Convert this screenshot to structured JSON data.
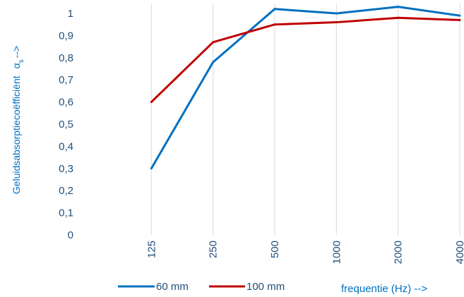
{
  "chart_data": {
    "type": "line",
    "categories": [
      "125",
      "250",
      "500",
      "1000",
      "2000",
      "4000"
    ],
    "series": [
      {
        "name": "60 mm",
        "color": "#0070c0",
        "values": [
          0.3,
          0.78,
          1.02,
          1.0,
          1.03,
          0.99
        ]
      },
      {
        "name": "100 mm",
        "color": "#c00000",
        "values": [
          0.6,
          0.87,
          0.95,
          0.96,
          0.98,
          0.97
        ]
      }
    ],
    "ylabel": "Geluidsabsorptiecoëfficiënt",
    "ylabel_symbol": "α",
    "ylabel_subscript": "s",
    "ylabel_arrow": "-->",
    "xlabel": "frequentie  (Hz) -->",
    "yticks": [
      "0",
      "0,1",
      "0,2",
      "0,3",
      "0,4",
      "0,5",
      "0,6",
      "0,7",
      "0,8",
      "0,9",
      "1"
    ],
    "ylim": [
      0,
      1.05
    ],
    "grid": "vertical",
    "legend_position": "bottom-left",
    "gridline_color": "#d9d9d9"
  }
}
